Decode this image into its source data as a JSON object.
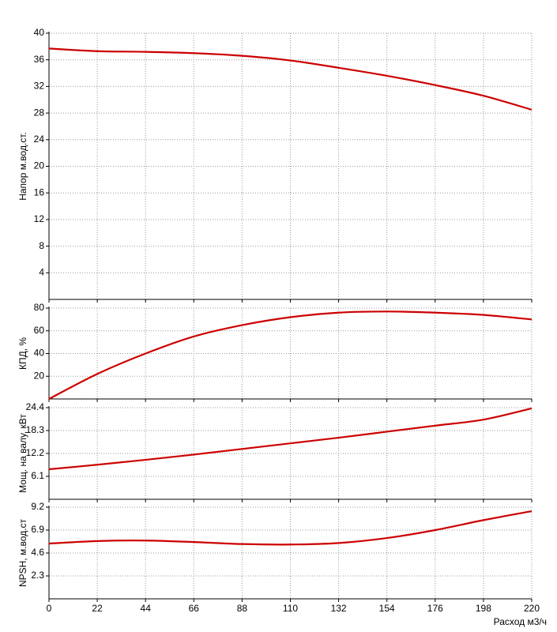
{
  "chart_data": [
    {
      "type": "line",
      "ylabel": "Напор м.вод.ст.",
      "color": "#cc0000",
      "grid": true,
      "x": [
        0,
        22,
        44,
        66,
        88,
        110,
        132,
        154,
        176,
        198,
        220
      ],
      "values": [
        37.7,
        37.3,
        37.2,
        37.0,
        36.6,
        35.9,
        34.8,
        33.6,
        32.2,
        30.6,
        28.5
      ],
      "xlim": [
        0,
        220
      ],
      "xticks": [
        0,
        22,
        44,
        66,
        88,
        110,
        132,
        154,
        176,
        198,
        220
      ],
      "ylim": [
        0,
        40
      ],
      "yticks": [
        4,
        8,
        12,
        16,
        20,
        24,
        28,
        32,
        36,
        40
      ]
    },
    {
      "type": "line",
      "ylabel": "КПД, %",
      "color": "#cc0000",
      "grid": true,
      "x": [
        0,
        22,
        44,
        66,
        88,
        110,
        132,
        154,
        176,
        198,
        220
      ],
      "values": [
        0,
        22,
        40,
        55,
        65,
        72,
        76,
        77,
        76,
        74,
        70
      ],
      "xlim": [
        0,
        220
      ],
      "xticks": [
        0,
        22,
        44,
        66,
        88,
        110,
        132,
        154,
        176,
        198,
        220
      ],
      "ylim": [
        0,
        80
      ],
      "yticks": [
        20,
        40,
        60,
        80
      ]
    },
    {
      "type": "line",
      "ylabel": "Мощ. на валу, кВт",
      "color": "#cc0000",
      "grid": true,
      "x": [
        0,
        22,
        44,
        66,
        88,
        110,
        132,
        154,
        176,
        198,
        220
      ],
      "values": [
        8.0,
        9.2,
        10.5,
        11.9,
        13.4,
        14.9,
        16.4,
        18.0,
        19.6,
        21.2,
        24.2
      ],
      "xlim": [
        0,
        220
      ],
      "xticks": [
        0,
        22,
        44,
        66,
        88,
        110,
        132,
        154,
        176,
        198,
        220
      ],
      "ylim": [
        0,
        24.4
      ],
      "yticks": [
        6.1,
        12.2,
        18.3,
        24.4
      ]
    },
    {
      "type": "line",
      "ylabel": "NPSH, м.вод.ст",
      "xlabel": "Расход м3/ч",
      "color": "#cc0000",
      "grid": true,
      "x": [
        0,
        22,
        44,
        66,
        88,
        110,
        132,
        154,
        176,
        198,
        220
      ],
      "values": [
        5.55,
        5.8,
        5.85,
        5.7,
        5.5,
        5.45,
        5.6,
        6.1,
        6.9,
        7.9,
        8.8
      ],
      "xlim": [
        0,
        220
      ],
      "xticks": [
        0,
        22,
        44,
        66,
        88,
        110,
        132,
        154,
        176,
        198,
        220
      ],
      "ylim": [
        0,
        9.2
      ],
      "yticks": [
        2.3,
        4.6,
        6.9,
        9.2
      ]
    }
  ]
}
